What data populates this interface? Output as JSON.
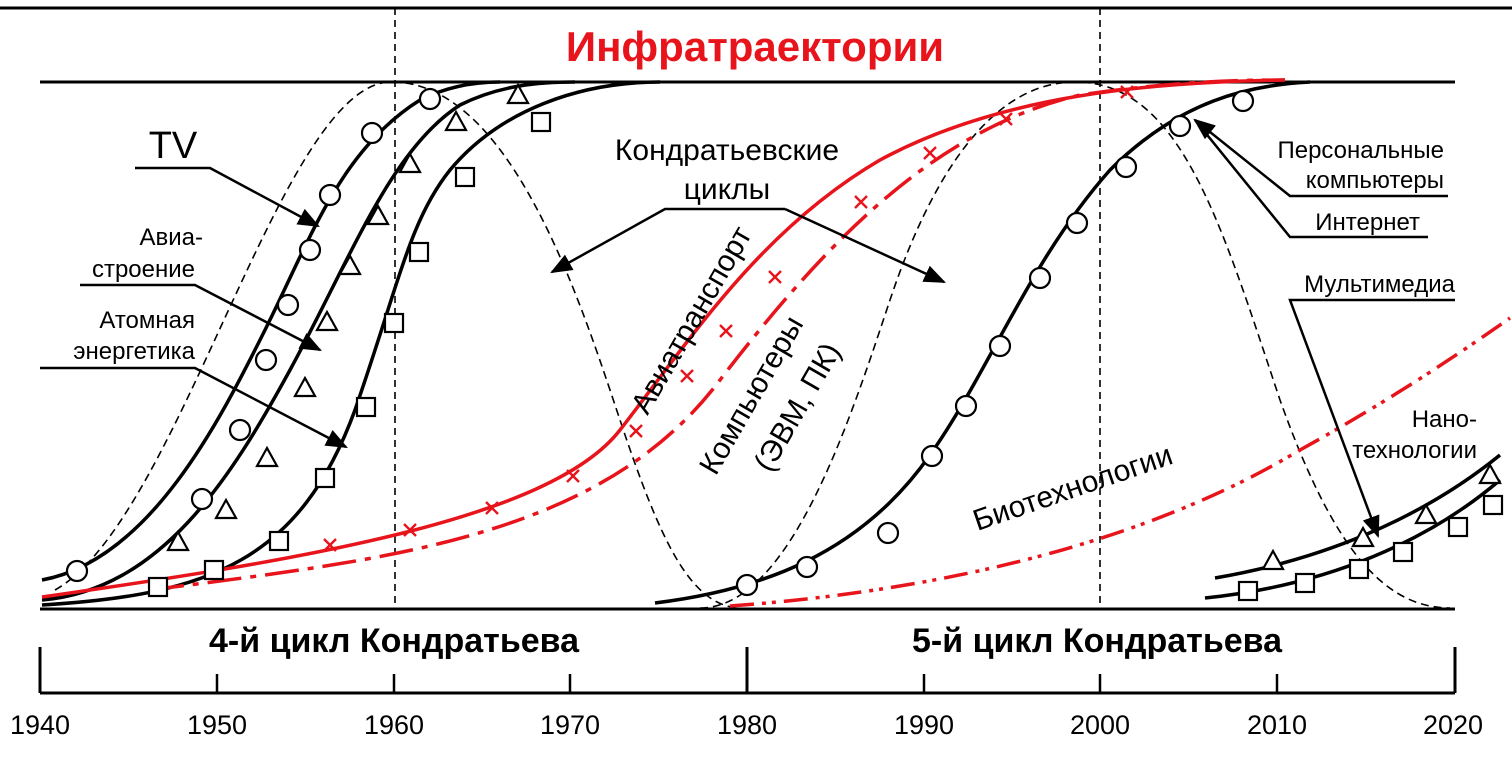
{
  "title": "Инфратраектории",
  "labels": {
    "tv": "TV",
    "aviation_1": "Авиа-",
    "aviation_2": "строение",
    "nuclear_1": "Атомная",
    "nuclear_2": "энергетика",
    "kondratiev_1": "Кондратьевские",
    "kondratiev_2": "циклы",
    "air_transport": "Авиатранспорт",
    "computers_1": "Компьютеры",
    "computers_2": "(ЭВМ, ПК)",
    "pc_1": "Персональные",
    "pc_2": "компьютеры",
    "internet": "Интернет",
    "multimedia": "Мультимедиа",
    "nano_1": "Нано-",
    "nano_2": "технологии",
    "biotech": "Биотехнологии"
  },
  "cycles": {
    "fourth": "4-й цикл Кондратьева",
    "fifth": "5-й цикл Кондратьева"
  },
  "axis": {
    "years": [
      "1940",
      "1950",
      "1960",
      "1970",
      "1980",
      "1990",
      "2000",
      "2010",
      "2020"
    ]
  },
  "colors": {
    "red": "#e8141c",
    "black": "#000000"
  }
}
